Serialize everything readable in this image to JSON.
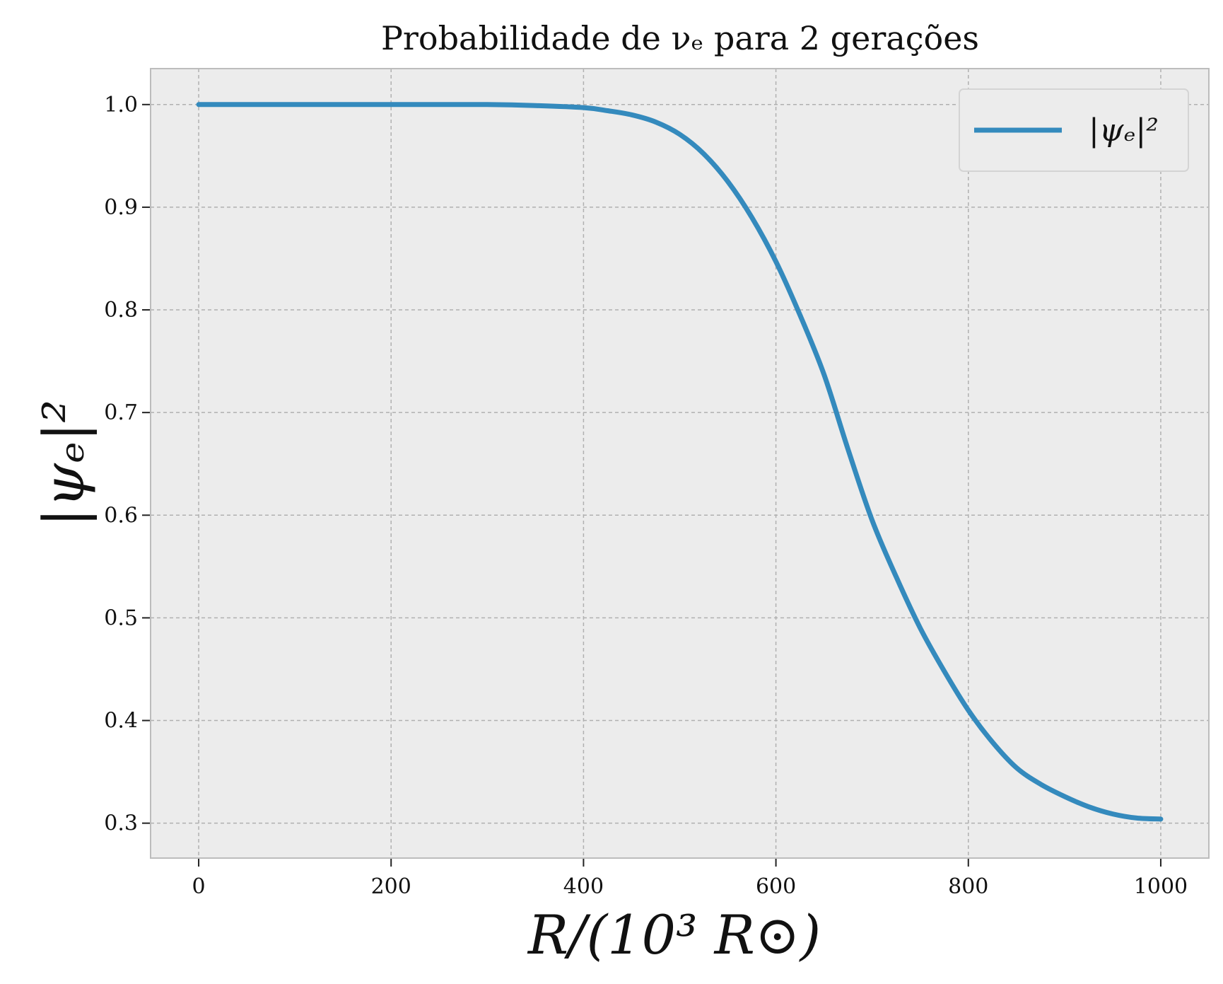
{
  "chart_data": {
    "type": "line",
    "title": "Probabilidade de νₑ para 2 gerações",
    "xlabel": "R/(10³ R⊙)",
    "ylabel": "|ψₑ|²",
    "xlim": [
      -50,
      1050
    ],
    "ylim": [
      0.266,
      1.035
    ],
    "x_ticks": [
      0,
      200,
      400,
      600,
      800,
      1000
    ],
    "y_ticks": [
      0.3,
      0.4,
      0.5,
      0.6,
      0.7,
      0.8,
      0.9,
      1.0
    ],
    "x_tick_labels": [
      "0",
      "200",
      "400",
      "600",
      "800",
      "1000"
    ],
    "y_tick_labels": [
      "0.3",
      "0.4",
      "0.5",
      "0.6",
      "0.7",
      "0.8",
      "0.9",
      "1.0"
    ],
    "grid": true,
    "legend_position": "top-right",
    "colors": {
      "series": "#348abd",
      "plot_background": "#ececec",
      "grid": "#b0b0b0",
      "frame": "#bcbcbc"
    },
    "series": [
      {
        "name": "|ψₑ|²",
        "x": [
          0,
          50,
          100,
          150,
          200,
          250,
          300,
          350,
          400,
          425,
          450,
          475,
          500,
          525,
          550,
          575,
          600,
          625,
          650,
          675,
          700,
          725,
          750,
          775,
          800,
          825,
          850,
          875,
          900,
          925,
          950,
          975,
          1000
        ],
        "y": [
          1.0,
          1.0,
          1.0,
          1.0,
          1.0,
          1.0,
          1.0,
          0.999,
          0.997,
          0.994,
          0.99,
          0.983,
          0.971,
          0.952,
          0.925,
          0.89,
          0.847,
          0.795,
          0.737,
          0.664,
          0.595,
          0.54,
          0.49,
          0.448,
          0.41,
          0.379,
          0.354,
          0.338,
          0.326,
          0.316,
          0.309,
          0.305,
          0.304
        ]
      }
    ]
  }
}
